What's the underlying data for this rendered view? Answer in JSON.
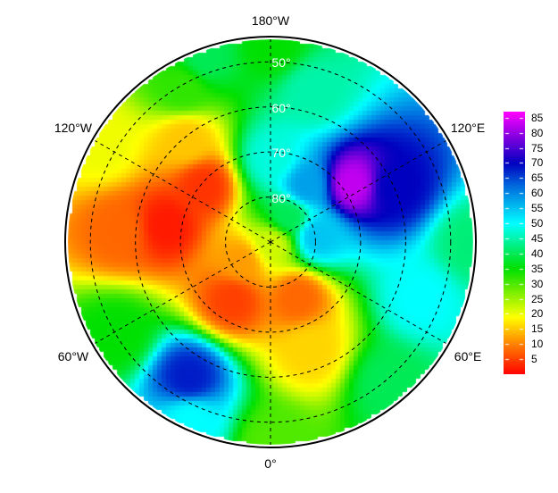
{
  "map": {
    "projection": "north polar stereographic",
    "lat_min": 45,
    "meridian_labels": [
      {
        "text": "180°W",
        "lon": 180
      },
      {
        "text": "0°",
        "lon": 0
      },
      {
        "text": "120°W",
        "lon": -120
      },
      {
        "text": "60°W",
        "lon": -60
      },
      {
        "text": "120°E",
        "lon": 120
      },
      {
        "text": "60°E",
        "lon": 60
      }
    ],
    "parallel_labels": [
      {
        "text": "50°",
        "lat": 50
      },
      {
        "text": "60°",
        "lat": 60
      },
      {
        "text": "70°",
        "lat": 70
      },
      {
        "text": "80°",
        "lat": 80
      }
    ],
    "meridian_lines": [
      0,
      60,
      120,
      180,
      -60,
      -120
    ],
    "field_points": [
      {
        "lat": 90,
        "lon": 0,
        "v": 22
      },
      {
        "lat": 66,
        "lon": -100,
        "v": 2
      },
      {
        "lat": 70,
        "lon": -130,
        "v": 4
      },
      {
        "lat": 60,
        "lon": -140,
        "v": 15
      },
      {
        "lat": 50,
        "lon": -150,
        "v": 32
      },
      {
        "lat": 46,
        "lon": -120,
        "v": 20
      },
      {
        "lat": 56,
        "lon": -95,
        "v": 8
      },
      {
        "lat": 75,
        "lon": -36,
        "v": 5
      },
      {
        "lat": 82,
        "lon": -60,
        "v": 12
      },
      {
        "lat": 77,
        "lon": 25,
        "v": 8
      },
      {
        "lat": 65,
        "lon": 20,
        "v": 16
      },
      {
        "lat": 55,
        "lon": -32,
        "v": 68
      },
      {
        "lat": 47,
        "lon": -25,
        "v": 50
      },
      {
        "lat": 50,
        "lon": -60,
        "v": 35
      },
      {
        "lat": 46,
        "lon": 0,
        "v": 30
      },
      {
        "lat": 50,
        "lon": 40,
        "v": 40
      },
      {
        "lat": 55,
        "lon": 70,
        "v": 50
      },
      {
        "lat": 46,
        "lon": 90,
        "v": 42
      },
      {
        "lat": 68,
        "lon": 127,
        "v": 83
      },
      {
        "lat": 60,
        "lon": 115,
        "v": 70
      },
      {
        "lat": 75,
        "lon": 150,
        "v": 58
      },
      {
        "lat": 55,
        "lon": 165,
        "v": 45
      },
      {
        "lat": 46,
        "lon": 180,
        "v": 35
      },
      {
        "lat": 71,
        "lon": 180,
        "v": 48
      },
      {
        "lat": 80,
        "lon": 100,
        "v": 55
      },
      {
        "lat": 46,
        "lon": -160,
        "v": 40
      },
      {
        "lat": 83,
        "lon": 150,
        "v": 40
      }
    ]
  },
  "colorbar": {
    "min": 0,
    "max": 87,
    "ticks": [
      "85",
      "80",
      "75",
      "70",
      "65",
      "60",
      "55",
      "50",
      "45",
      "40",
      "35",
      "30",
      "25",
      "20",
      "15",
      "10",
      "5"
    ],
    "colors": [
      {
        "v": 0,
        "c": "#ff0000"
      },
      {
        "v": 10,
        "c": "#ff8000"
      },
      {
        "v": 19,
        "c": "#ffff00"
      },
      {
        "v": 35,
        "c": "#00e000"
      },
      {
        "v": 50,
        "c": "#00ffff"
      },
      {
        "v": 62,
        "c": "#0070e0"
      },
      {
        "v": 70,
        "c": "#0000c0"
      },
      {
        "v": 87,
        "c": "#ff00ff"
      }
    ]
  }
}
